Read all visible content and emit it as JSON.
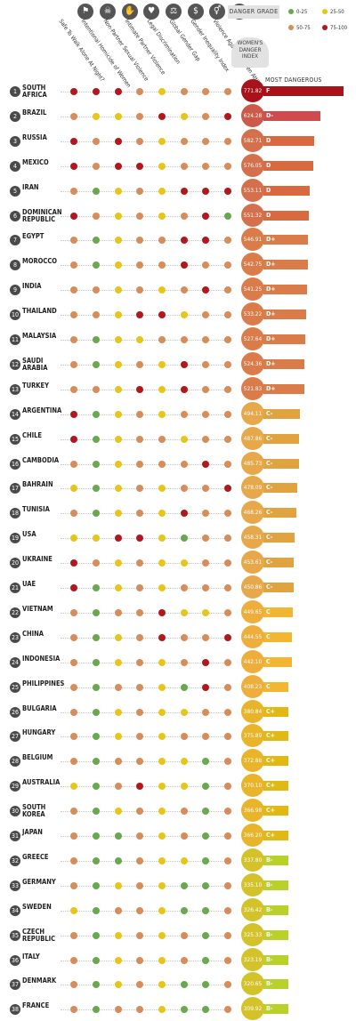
{
  "legend": {
    "title": "DANGER GRADE",
    "items": [
      {
        "label": "0-25",
        "color": "#6aa84f"
      },
      {
        "label": "25-50",
        "color": "#e6c619"
      },
      {
        "label": "50-75",
        "color": "#d88c5a"
      },
      {
        "label": "75-100",
        "color": "#b3171e"
      }
    ]
  },
  "index_title": "WOMEN'S\nDANGER\nINDEX",
  "most_dangerous": "MOST DANGEROUS",
  "columns": [
    {
      "label": "Safe To Walk Alone At Night?",
      "icon": "⚑"
    },
    {
      "label": "Intentional Homicide of Women",
      "icon": "☠"
    },
    {
      "label": "Non-Partner Sexual Violence",
      "icon": "✋"
    },
    {
      "label": "Intimate Partner Violence",
      "icon": "♥"
    },
    {
      "label": "Legal Discrimination",
      "icon": "⚖"
    },
    {
      "label": "Global Gender Gap",
      "icon": "$"
    },
    {
      "label": "Gender Inequality Index",
      "icon": "⚥"
    },
    {
      "label": "Violence Against Women Attitudes",
      "icon": "✊"
    }
  ],
  "chart_data": {
    "type": "table",
    "max_score": 771.82,
    "rows": [
      {
        "rank": "1",
        "country": "SOUTH AFRICA",
        "score": "771.82",
        "grade": "F",
        "dots": [
          3,
          3,
          3,
          2,
          1,
          2,
          2,
          2
        ]
      },
      {
        "rank": "2",
        "country": "BRAZIL",
        "score": "624.28",
        "grade": "D-",
        "dots": [
          2,
          1,
          1,
          2,
          3,
          1,
          2,
          3
        ]
      },
      {
        "rank": "3",
        "country": "RUSSIA",
        "score": "582.71",
        "grade": "D",
        "dots": [
          3,
          2,
          3,
          2,
          1,
          2,
          2,
          2
        ]
      },
      {
        "rank": "4",
        "country": "MEXICO",
        "score": "576.05",
        "grade": "D",
        "dots": [
          3,
          2,
          3,
          3,
          1,
          2,
          2,
          2
        ]
      },
      {
        "rank": "5",
        "country": "IRAN",
        "score": "553.11",
        "grade": "D",
        "dots": [
          2,
          0,
          1,
          2,
          1,
          3,
          3,
          3
        ]
      },
      {
        "rank": "6",
        "country": "DOMINICAN REPUBLIC",
        "score": "551.32",
        "grade": "D",
        "dots": [
          3,
          2,
          1,
          2,
          1,
          2,
          3,
          0
        ]
      },
      {
        "rank": "7",
        "country": "EGYPT",
        "score": "546.91",
        "grade": "D+",
        "dots": [
          2,
          0,
          1,
          2,
          2,
          3,
          3,
          2
        ]
      },
      {
        "rank": "8",
        "country": "MOROCCO",
        "score": "542.75",
        "grade": "D+",
        "dots": [
          2,
          0,
          1,
          2,
          2,
          3,
          2,
          2
        ]
      },
      {
        "rank": "9",
        "country": "INDIA",
        "score": "541.25",
        "grade": "D+",
        "dots": [
          2,
          2,
          1,
          2,
          1,
          2,
          3,
          2
        ]
      },
      {
        "rank": "10",
        "country": "THAILAND",
        "score": "533.22",
        "grade": "D+",
        "dots": [
          2,
          2,
          1,
          3,
          3,
          1,
          2,
          2
        ]
      },
      {
        "rank": "11",
        "country": "MALAYSIA",
        "score": "527.64",
        "grade": "D+",
        "dots": [
          2,
          0,
          1,
          1,
          2,
          2,
          2,
          2
        ]
      },
      {
        "rank": "12",
        "country": "SAUDI ARABIA",
        "score": "524.36",
        "grade": "D+",
        "dots": [
          2,
          0,
          1,
          2,
          1,
          3,
          2,
          2
        ]
      },
      {
        "rank": "13",
        "country": "TURKEY",
        "score": "521.83",
        "grade": "D+",
        "dots": [
          2,
          2,
          1,
          3,
          1,
          3,
          2,
          2
        ]
      },
      {
        "rank": "14",
        "country": "ARGENTINA",
        "score": "494.11",
        "grade": "C-",
        "dots": [
          3,
          0,
          1,
          2,
          1,
          2,
          2,
          2
        ]
      },
      {
        "rank": "15",
        "country": "CHILE",
        "score": "487.86",
        "grade": "C-",
        "dots": [
          3,
          0,
          1,
          2,
          2,
          1,
          2,
          2
        ]
      },
      {
        "rank": "16",
        "country": "CAMBODIA",
        "score": "485.73",
        "grade": "C-",
        "dots": [
          2,
          0,
          1,
          2,
          2,
          2,
          3,
          2
        ]
      },
      {
        "rank": "17",
        "country": "BAHRAIN",
        "score": "478.09",
        "grade": "C-",
        "dots": [
          1,
          0,
          1,
          2,
          1,
          2,
          2,
          3
        ]
      },
      {
        "rank": "18",
        "country": "TUNISIA",
        "score": "468.26",
        "grade": "C-",
        "dots": [
          2,
          0,
          1,
          2,
          1,
          3,
          2,
          2
        ]
      },
      {
        "rank": "19",
        "country": "USA",
        "score": "458.31",
        "grade": "C-",
        "dots": [
          1,
          1,
          3,
          3,
          1,
          0,
          2,
          2
        ]
      },
      {
        "rank": "20",
        "country": "UKRAINE",
        "score": "453.61",
        "grade": "C-",
        "dots": [
          3,
          2,
          1,
          2,
          1,
          1,
          2,
          2
        ]
      },
      {
        "rank": "21",
        "country": "UAE",
        "score": "450.86",
        "grade": "C-",
        "dots": [
          3,
          0,
          1,
          2,
          1,
          2,
          2,
          2
        ]
      },
      {
        "rank": "22",
        "country": "VIETNAM",
        "score": "449.65",
        "grade": "C",
        "dots": [
          2,
          0,
          2,
          2,
          3,
          1,
          1,
          2
        ]
      },
      {
        "rank": "23",
        "country": "CHINA",
        "score": "444.55",
        "grade": "C",
        "dots": [
          2,
          0,
          1,
          2,
          3,
          2,
          2,
          3
        ]
      },
      {
        "rank": "24",
        "country": "INDONESIA",
        "score": "442.10",
        "grade": "C",
        "dots": [
          2,
          0,
          1,
          2,
          1,
          2,
          3,
          2
        ]
      },
      {
        "rank": "25",
        "country": "PHILIPPINES",
        "score": "408.23",
        "grade": "C",
        "dots": [
          2,
          0,
          2,
          2,
          1,
          0,
          3,
          2
        ]
      },
      {
        "rank": "26",
        "country": "BULGARIA",
        "score": "380.84",
        "grade": "C+",
        "dots": [
          2,
          0,
          1,
          2,
          1,
          1,
          2,
          2
        ]
      },
      {
        "rank": "27",
        "country": "HUNGARY",
        "score": "375.89",
        "grade": "C+",
        "dots": [
          2,
          0,
          1,
          2,
          1,
          2,
          2,
          2
        ]
      },
      {
        "rank": "28",
        "country": "BELGIUM",
        "score": "372.88",
        "grade": "C+",
        "dots": [
          2,
          0,
          2,
          2,
          1,
          1,
          0,
          2
        ]
      },
      {
        "rank": "29",
        "country": "AUSTRALIA",
        "score": "370.10",
        "grade": "C+",
        "dots": [
          1,
          0,
          2,
          3,
          1,
          1,
          0,
          2
        ]
      },
      {
        "rank": "30",
        "country": "SOUTH KOREA",
        "score": "366.98",
        "grade": "C+",
        "dots": [
          2,
          0,
          1,
          2,
          1,
          2,
          0,
          2
        ]
      },
      {
        "rank": "31",
        "country": "JAPAN",
        "score": "366.20",
        "grade": "C+",
        "dots": [
          2,
          0,
          0,
          2,
          1,
          2,
          0,
          2
        ]
      },
      {
        "rank": "32",
        "country": "GREECE",
        "score": "337.80",
        "grade": "B-",
        "dots": [
          2,
          0,
          0,
          2,
          1,
          1,
          0,
          2
        ]
      },
      {
        "rank": "33",
        "country": "GERMANY",
        "score": "335.10",
        "grade": "B-",
        "dots": [
          2,
          0,
          1,
          2,
          1,
          0,
          0,
          2
        ]
      },
      {
        "rank": "34",
        "country": "SWEDEN",
        "score": "326.42",
        "grade": "B-",
        "dots": [
          1,
          0,
          2,
          2,
          1,
          0,
          0,
          2
        ]
      },
      {
        "rank": "35",
        "country": "CZECH REPUBLIC",
        "score": "325.33",
        "grade": "B-",
        "dots": [
          2,
          0,
          1,
          2,
          1,
          2,
          0,
          2
        ]
      },
      {
        "rank": "36",
        "country": "ITALY",
        "score": "323.19",
        "grade": "B-",
        "dots": [
          2,
          0,
          1,
          2,
          1,
          2,
          0,
          2
        ]
      },
      {
        "rank": "37",
        "country": "DENMARK",
        "score": "320.65",
        "grade": "B-",
        "dots": [
          2,
          0,
          1,
          2,
          1,
          0,
          0,
          2
        ]
      },
      {
        "rank": "38",
        "country": "FRANCE",
        "score": "309.92",
        "grade": "B-",
        "dots": [
          2,
          0,
          2,
          2,
          1,
          0,
          0,
          2
        ]
      }
    ]
  }
}
